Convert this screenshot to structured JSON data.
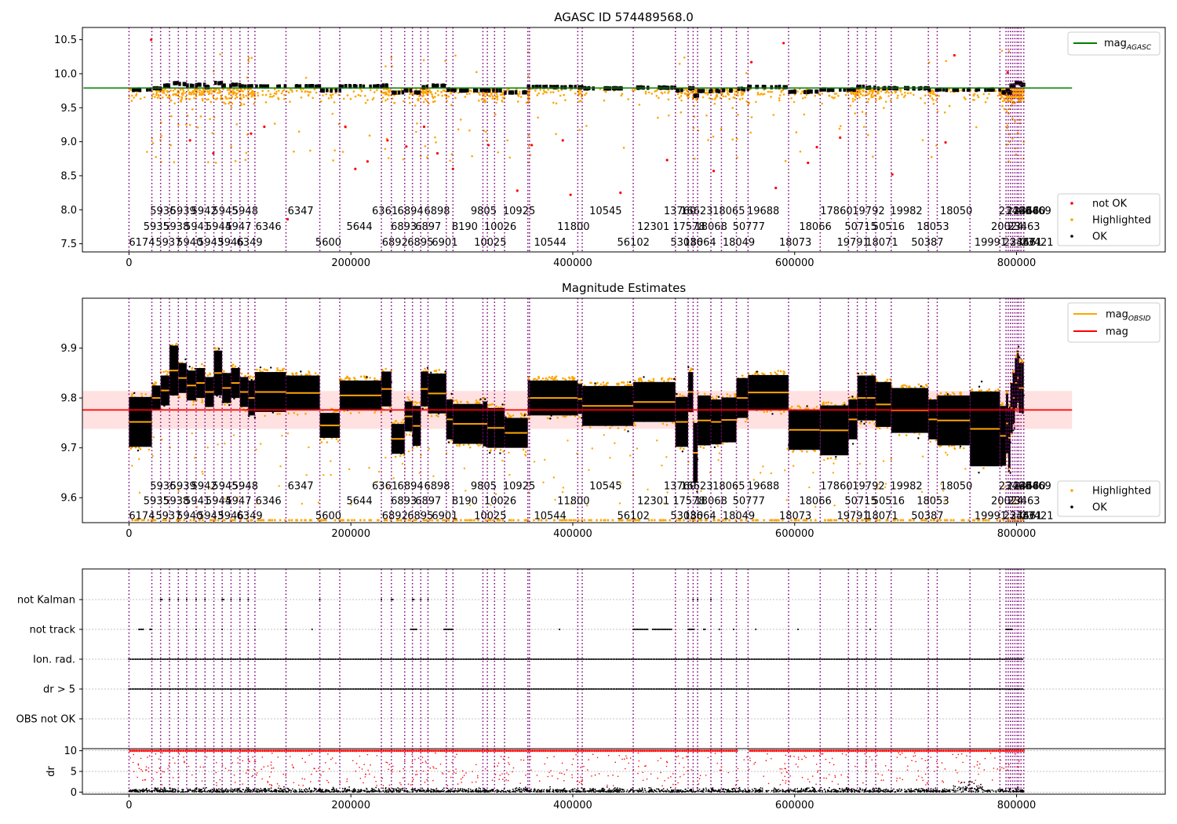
{
  "figure": {
    "background": "#ffffff"
  },
  "colors": {
    "obsid_line": "#800080",
    "agasc_line": "#008000",
    "mag_line": "#ff0000",
    "mag_band": "#ffdede",
    "obsid_mag": "#ffa500",
    "ok": "#000000",
    "highlighted": "#ffa500",
    "not_ok": "#ff0000",
    "flag_grid": "#b0b0b0"
  },
  "x_axis": {
    "lim": [
      -42000,
      934000
    ],
    "ticks": [
      0,
      200000,
      400000,
      600000,
      800000
    ],
    "tick_labels": [
      "0",
      "200000",
      "400000",
      "600000",
      "800000"
    ]
  },
  "obsid_boundaries": [
    0,
    20600,
    28500,
    36500,
    44500,
    52000,
    60500,
    68500,
    76500,
    84000,
    92000,
    100000,
    107500,
    113500,
    141500,
    172000,
    190000,
    227500,
    236500,
    248500,
    255500,
    263000,
    269500,
    286000,
    292000,
    319000,
    323000,
    329500,
    338500,
    359500,
    361000,
    404500,
    408500,
    454500,
    492500,
    504000,
    508500,
    512500,
    524500,
    534000,
    547500,
    558000,
    594500,
    623000,
    648500,
    656500,
    664500,
    673000,
    687000,
    720500,
    728500,
    758000,
    785000,
    790500,
    792500,
    794500,
    796500,
    798500,
    800500,
    802000,
    804000,
    806500
  ],
  "obsid_labels": [
    {
      "text": "6174",
      "x": 0,
      "row": 0
    },
    {
      "text": "5935",
      "x": 13000,
      "row": 1
    },
    {
      "text": "5936",
      "x": 19000,
      "row": 2
    },
    {
      "text": "5937",
      "x": 24000,
      "row": 0
    },
    {
      "text": "5938",
      "x": 31000,
      "row": 1
    },
    {
      "text": "5939",
      "x": 37000,
      "row": 2
    },
    {
      "text": "5940",
      "x": 43000,
      "row": 0
    },
    {
      "text": "5941",
      "x": 50000,
      "row": 1
    },
    {
      "text": "5942",
      "x": 56000,
      "row": 2
    },
    {
      "text": "5943",
      "x": 62000,
      "row": 0
    },
    {
      "text": "5944",
      "x": 69000,
      "row": 1
    },
    {
      "text": "5945",
      "x": 75000,
      "row": 2
    },
    {
      "text": "5946",
      "x": 80000,
      "row": 0
    },
    {
      "text": "5947",
      "x": 87000,
      "row": 1
    },
    {
      "text": "5948",
      "x": 93000,
      "row": 2
    },
    {
      "text": "6349",
      "x": 97000,
      "row": 0
    },
    {
      "text": "6346",
      "x": 114000,
      "row": 1
    },
    {
      "text": "6347",
      "x": 143000,
      "row": 2
    },
    {
      "text": "5600",
      "x": 168000,
      "row": 0
    },
    {
      "text": "5644",
      "x": 196000,
      "row": 1
    },
    {
      "text": "6361",
      "x": 219000,
      "row": 2
    },
    {
      "text": "6892",
      "x": 228000,
      "row": 0
    },
    {
      "text": "6893",
      "x": 236000,
      "row": 1
    },
    {
      "text": "6894",
      "x": 242000,
      "row": 2
    },
    {
      "text": "6895",
      "x": 251000,
      "row": 0
    },
    {
      "text": "6897",
      "x": 258000,
      "row": 1
    },
    {
      "text": "6898",
      "x": 266000,
      "row": 2
    },
    {
      "text": "6901",
      "x": 273000,
      "row": 0
    },
    {
      "text": "8190",
      "x": 291000,
      "row": 1
    },
    {
      "text": "9805",
      "x": 308000,
      "row": 2
    },
    {
      "text": "10025",
      "x": 311000,
      "row": 0
    },
    {
      "text": "10026",
      "x": 320000,
      "row": 1
    },
    {
      "text": "10925",
      "x": 337000,
      "row": 2
    },
    {
      "text": "10544",
      "x": 365000,
      "row": 0
    },
    {
      "text": "11800",
      "x": 386000,
      "row": 1
    },
    {
      "text": "10545",
      "x": 415000,
      "row": 2
    },
    {
      "text": "56102",
      "x": 440000,
      "row": 0
    },
    {
      "text": "12301",
      "x": 458000,
      "row": 1
    },
    {
      "text": "13760",
      "x": 482000,
      "row": 2
    },
    {
      "text": "53036",
      "x": 488000,
      "row": 0
    },
    {
      "text": "17578",
      "x": 490000,
      "row": 1
    },
    {
      "text": "16623",
      "x": 497000,
      "row": 2
    },
    {
      "text": "18064",
      "x": 500000,
      "row": 0
    },
    {
      "text": "18068",
      "x": 510000,
      "row": 1
    },
    {
      "text": "18065",
      "x": 526000,
      "row": 2
    },
    {
      "text": "18049",
      "x": 535000,
      "row": 0
    },
    {
      "text": "50777",
      "x": 544000,
      "row": 1
    },
    {
      "text": "19688",
      "x": 557000,
      "row": 2
    },
    {
      "text": "18073",
      "x": 586000,
      "row": 0
    },
    {
      "text": "18066",
      "x": 604000,
      "row": 1
    },
    {
      "text": "17860",
      "x": 623000,
      "row": 2
    },
    {
      "text": "19791",
      "x": 638000,
      "row": 0
    },
    {
      "text": "50715",
      "x": 645000,
      "row": 1
    },
    {
      "text": "19792",
      "x": 652000,
      "row": 2
    },
    {
      "text": "18071",
      "x": 664000,
      "row": 0
    },
    {
      "text": "50516",
      "x": 670000,
      "row": 1
    },
    {
      "text": "19982",
      "x": 686000,
      "row": 2
    },
    {
      "text": "50387",
      "x": 705000,
      "row": 0
    },
    {
      "text": "18053",
      "x": 710000,
      "row": 1
    },
    {
      "text": "18050",
      "x": 731000,
      "row": 2
    },
    {
      "text": "19991",
      "x": 762000,
      "row": 0
    },
    {
      "text": "20024",
      "x": 777000,
      "row": 1
    },
    {
      "text": "23466",
      "x": 784000,
      "row": 2
    },
    {
      "text": "23467",
      "x": 788000,
      "row": 0
    },
    {
      "text": "23463",
      "x": 792000,
      "row": 1
    },
    {
      "text": "23468",
      "x": 791000,
      "row": 2
    },
    {
      "text": "23461",
      "x": 794000,
      "row": 0
    },
    {
      "text": "23460",
      "x": 797000,
      "row": 2
    },
    {
      "text": "23469",
      "x": 802000,
      "row": 2
    },
    {
      "text": "23421",
      "x": 804000,
      "row": 0
    }
  ],
  "panels": [
    {
      "id": "agasc",
      "title": "AGASC ID 574489568.0",
      "ylim": [
        7.38,
        10.68
      ],
      "yticks": [
        7.5,
        8.0,
        8.5,
        9.0,
        9.5,
        10.0,
        10.5
      ],
      "ytick_labels": [
        "7.5",
        "8.0",
        "8.5",
        "9.0",
        "9.5",
        "10.0",
        "10.5"
      ],
      "label_rows_y": [
        7.53,
        7.76,
        7.99
      ]
    },
    {
      "id": "estimates",
      "title": "Magnitude Estimates",
      "ylim": [
        9.55,
        10.0
      ],
      "yticks": [
        9.6,
        9.7,
        9.8,
        9.9
      ],
      "ytick_labels": [
        "9.6",
        "9.7",
        "9.8",
        "9.9"
      ],
      "label_rows_y": [
        9.565,
        9.595,
        9.625
      ]
    },
    {
      "id": "flags",
      "title": "",
      "categories": [
        "OBS not OK",
        "dr > 5",
        "Ion. rad.",
        "not track",
        "not Kalman"
      ]
    },
    {
      "id": "dr",
      "ylabel": "dr",
      "ylim": [
        -0.5,
        10.5
      ],
      "yticks": [
        0,
        5,
        10
      ],
      "ytick_labels": [
        "0",
        "5",
        "10"
      ]
    }
  ],
  "chart_data": [
    {
      "type": "scatter",
      "title": "AGASC ID 574489568.0",
      "xlabel": "",
      "ylabel": "",
      "xlim": [
        -42000,
        934000
      ],
      "ylim": [
        7.38,
        10.68
      ],
      "reference_line": {
        "name": "mag_AGASC",
        "y": 9.79
      },
      "series": [
        {
          "name": "not OK",
          "points": [
            [
              20000,
              10.5
            ],
            [
              55000,
              9.02
            ],
            [
              76000,
              8.83
            ],
            [
              110000,
              9.12
            ],
            [
              122000,
              9.22
            ],
            [
              143000,
              7.86
            ],
            [
              195000,
              9.22
            ],
            [
              204000,
              8.6
            ],
            [
              215000,
              8.71
            ],
            [
              233000,
              9.02
            ],
            [
              250000,
              8.93
            ],
            [
              266000,
              9.22
            ],
            [
              278000,
              8.83
            ],
            [
              292000,
              8.6
            ],
            [
              324000,
              8.95
            ],
            [
              350000,
              8.28
            ],
            [
              363000,
              8.95
            ],
            [
              391000,
              9.02
            ],
            [
              398000,
              8.22
            ],
            [
              443000,
              8.25
            ],
            [
              485000,
              8.73
            ],
            [
              527000,
              8.57
            ],
            [
              561000,
              10.17
            ],
            [
              583000,
              8.32
            ],
            [
              590000,
              10.45
            ],
            [
              612000,
              8.69
            ],
            [
              620000,
              8.92
            ],
            [
              641000,
              9.06
            ],
            [
              688000,
              8.52
            ],
            [
              736000,
              8.99
            ],
            [
              744000,
              10.27
            ],
            [
              792000,
              10.02
            ]
          ]
        },
        {
          "name": "Highlighted",
          "note": "approximately 7000 points scattered mostly between 9.4 and 9.8"
        },
        {
          "name": "OK",
          "points_per_obsid": [
            9.76,
            9.78,
            9.82,
            9.86,
            9.84,
            9.82,
            9.83,
            9.8,
            9.86,
            9.82,
            9.83,
            9.81,
            9.81,
            9.81,
            9.81,
            9.75,
            9.81,
            9.82,
            9.72,
            9.75,
            9.72,
            9.8,
            9.82,
            9.76,
            9.75,
            9.75,
            9.75,
            9.75,
            9.72,
            9.8,
            9.8,
            9.8,
            9.78,
            9.79,
            9.75,
            9.78,
            9.67,
            9.74,
            9.74,
            9.75,
            9.77,
            9.8,
            9.73,
            9.76,
            9.76,
            9.8,
            9.79,
            9.78,
            9.78,
            9.76,
            9.76,
            9.76,
            9.72,
            9.75,
            9.72,
            9.82,
            9.82,
            9.86,
            9.86,
            9.85,
            9.83
          ]
        }
      ],
      "legend": {
        "entries": [
          "mag_AGASC",
          "not OK",
          "Highlighted",
          "OK"
        ],
        "placement": "right"
      }
    },
    {
      "type": "scatter",
      "title": "Magnitude Estimates",
      "xlim": [
        -42000,
        934000
      ],
      "ylim": [
        9.55,
        10.0
      ],
      "mag": {
        "value": 9.776,
        "band": [
          9.738,
          9.814
        ]
      },
      "obsid_mag": [
        9.752,
        9.8,
        9.815,
        9.855,
        9.84,
        9.825,
        9.83,
        9.812,
        9.85,
        9.82,
        9.83,
        9.812,
        9.8,
        9.812,
        9.81,
        9.745,
        9.805,
        9.818,
        9.718,
        9.763,
        9.744,
        9.818,
        9.809,
        9.757,
        9.748,
        9.748,
        9.74,
        9.74,
        9.73,
        9.8,
        9.8,
        9.798,
        9.784,
        9.792,
        9.752,
        9.812,
        9.69,
        9.755,
        9.752,
        9.756,
        9.8,
        9.811,
        9.736,
        9.735,
        9.757,
        9.8,
        9.8,
        9.787,
        9.775,
        9.757,
        9.755,
        9.738,
        9.724,
        9.749,
        9.72,
        9.78,
        9.8,
        9.83,
        9.84,
        9.82,
        9.82
      ],
      "obsid_spread": [
        0.05,
        0.025,
        0.03,
        0.05,
        0.03,
        0.03,
        0.03,
        0.03,
        0.045,
        0.03,
        0.03,
        0.03,
        0.035,
        0.04,
        0.035,
        0.025,
        0.03,
        0.035,
        0.03,
        0.03,
        0.04,
        0.035,
        0.04,
        0.04,
        0.04,
        0.045,
        0.04,
        0.04,
        0.03,
        0.035,
        0.035,
        0.03,
        0.04,
        0.04,
        0.05,
        0.04,
        0.06,
        0.05,
        0.045,
        0.045,
        0.04,
        0.035,
        0.04,
        0.05,
        0.04,
        0.045,
        0.045,
        0.045,
        0.045,
        0.04,
        0.05,
        0.075,
        0.06,
        0.06,
        0.06,
        0.05,
        0.05,
        0.05,
        0.05,
        0.05,
        0.05
      ],
      "series": [
        {
          "name": "mag_OBSID"
        },
        {
          "name": "mag"
        },
        {
          "name": "Highlighted",
          "note": "orange points fringe each OBSID; many clipped at 9.555"
        },
        {
          "name": "OK",
          "note": "dense black clusters per OBSID"
        }
      ],
      "legend": {
        "entries": [
          "mag_OBSID",
          "mag",
          "Highlighted",
          "OK"
        ],
        "placement": "upper and lower right"
      }
    },
    {
      "type": "scatter",
      "title": "",
      "categories": [
        "OBS not OK",
        "dr > 5",
        "Ion. rad.",
        "not track",
        "not Kalman"
      ],
      "flag_segments": {
        "not Kalman": [
          [
            28500,
            30500
          ],
          [
            36500,
            37500
          ],
          [
            44500,
            45500
          ],
          [
            52000,
            53000
          ],
          [
            60500,
            61000
          ],
          [
            68500,
            69000
          ],
          [
            84000,
            86000
          ],
          [
            92000,
            93000
          ],
          [
            100000,
            101000
          ],
          [
            107500,
            108500
          ],
          [
            172000,
            173000
          ],
          [
            227500,
            228500
          ],
          [
            236500,
            238000
          ],
          [
            255500,
            257000
          ],
          [
            263000,
            264000
          ],
          [
            269500,
            270500
          ],
          [
            508500,
            509500
          ],
          [
            512500,
            513500
          ],
          [
            524500,
            525500
          ]
        ],
        "not track": [
          [
            9000,
            13000
          ],
          [
            19000,
            20600
          ],
          [
            60500,
            61000
          ],
          [
            84000,
            85000
          ],
          [
            113500,
            114500
          ],
          [
            141500,
            142500
          ],
          [
            165000,
            166000
          ],
          [
            254000,
            260000
          ],
          [
            284000,
            292000
          ],
          [
            388000,
            389000
          ],
          [
            454500,
            468000
          ],
          [
            472000,
            490000
          ],
          [
            504000,
            510000
          ],
          [
            518000,
            520000
          ],
          [
            532000,
            533000
          ],
          [
            545000,
            546000
          ],
          [
            565000,
            566000
          ],
          [
            603000,
            604000
          ],
          [
            668000,
            669000
          ],
          [
            790500,
            796000
          ]
        ],
        "Ion. rad.": [
          [
            0,
            806500
          ]
        ],
        "dr > 5": [
          [
            0,
            806500
          ]
        ],
        "OBS not OK": []
      }
    },
    {
      "type": "scatter",
      "title": "",
      "ylabel": "dr",
      "ylim": [
        -0.5,
        10.5
      ],
      "series": [
        {
          "name": "OK",
          "note": "dr mostly between 0 and 1.5, rising to about 2.5 near x=760000"
        },
        {
          "name": "not OK",
          "note": "dense band at dr=10 with scattered points between 3 and 9"
        }
      ]
    }
  ],
  "legends": {
    "agasc": [
      {
        "label": "mag",
        "sub": "AGASC",
        "type": "line",
        "color": "#008000"
      }
    ],
    "agasc_points": [
      {
        "label": "not OK",
        "type": "dot",
        "color": "#ff0000"
      },
      {
        "label": "Highlighted",
        "type": "dot",
        "color": "#ffa500"
      },
      {
        "label": "OK",
        "type": "dot",
        "color": "#000000"
      }
    ],
    "estimates_lines": [
      {
        "label": "mag",
        "sub": "OBSID",
        "type": "line",
        "color": "#ffa500"
      },
      {
        "label": "mag",
        "sub": "",
        "type": "line",
        "color": "#ff0000"
      }
    ],
    "estimates_points": [
      {
        "label": "Highlighted",
        "type": "dot",
        "color": "#ffa500"
      },
      {
        "label": "OK",
        "type": "dot",
        "color": "#000000"
      }
    ]
  }
}
